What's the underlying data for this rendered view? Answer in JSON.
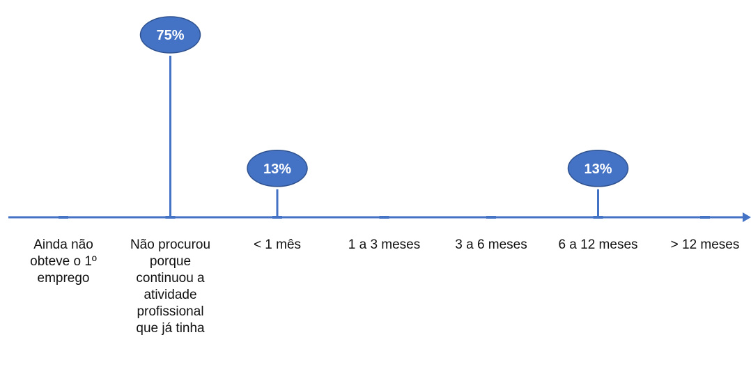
{
  "chart_data": {
    "type": "lollipop",
    "categories": [
      "Ainda não obteve o 1º emprego",
      "Não procurou porque continuou a atividade profissional que já tinha",
      "< 1  mês",
      "1  a  3 meses",
      "3  a  6 meses",
      "6  a 12 meses",
      "> 12 meses"
    ],
    "category_lines": [
      [
        "Ainda não",
        "obteve o 1º",
        "emprego"
      ],
      [
        "Não procurou",
        "porque",
        "continuou a",
        "atividade",
        "profissional",
        "que já tinha"
      ],
      [
        "< 1  mês"
      ],
      [
        "1  a  3 meses"
      ],
      [
        "3  a  6 meses"
      ],
      [
        "6  a 12 meses"
      ],
      [
        "> 12 meses"
      ]
    ],
    "values": [
      0,
      75,
      13,
      0,
      0,
      13,
      0
    ],
    "data_labels": [
      "",
      "75%",
      "13%",
      "",
      "",
      "13%",
      ""
    ],
    "ylim": [
      0,
      75
    ],
    "grid": false,
    "legend": "none",
    "colors": {
      "axis": "#4472C4",
      "stem": "#4472C4",
      "bubble_fill": "#4472C4",
      "bubble_stroke": "#2F528F",
      "label_text": "#111111",
      "bubble_text": "#ffffff"
    }
  }
}
